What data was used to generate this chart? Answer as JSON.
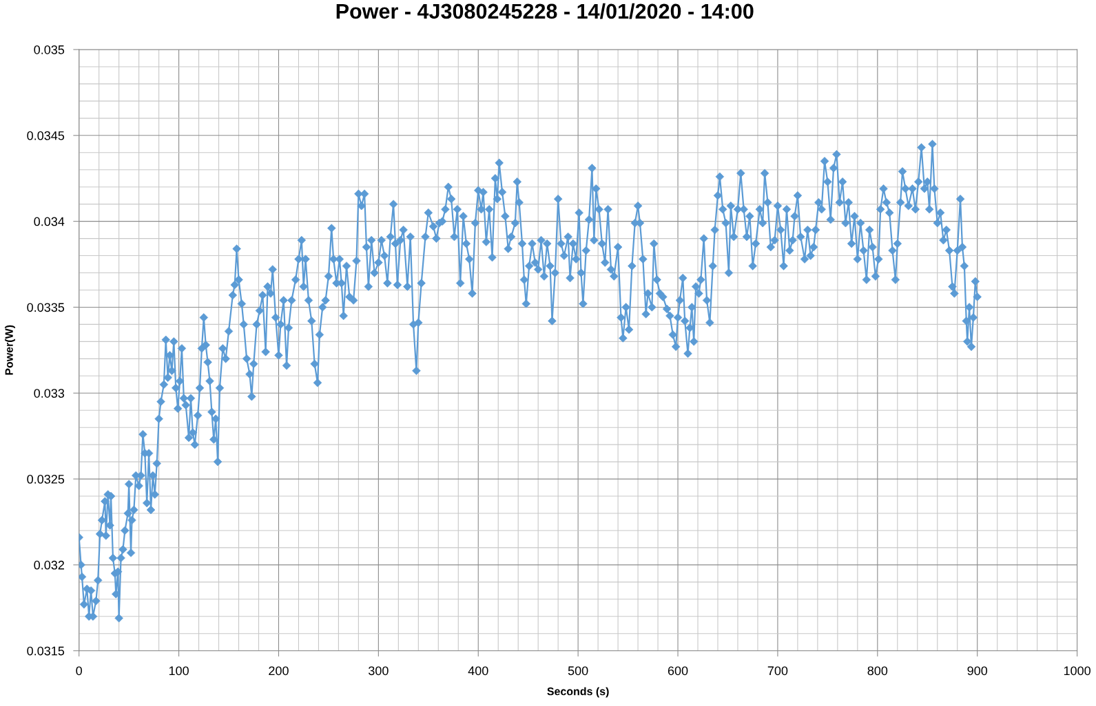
{
  "chart_data": {
    "type": "line",
    "title": "Power - 4J3080245228 - 14/01/2020 - 14:00",
    "xlabel": "Seconds (s)",
    "ylabel": "Power(W)",
    "x": [
      0,
      2,
      3,
      5,
      8,
      10,
      12,
      14,
      17,
      19,
      21,
      23,
      26,
      27,
      29,
      31,
      32,
      34,
      36,
      37,
      39,
      40,
      42,
      44,
      46,
      49,
      50,
      52,
      53,
      55,
      57,
      60,
      62,
      64,
      66,
      68,
      70,
      72,
      74,
      76,
      78,
      80,
      82,
      85,
      87,
      89,
      91,
      93,
      95,
      97,
      99,
      101,
      103,
      105,
      107,
      110,
      112,
      114,
      116,
      119,
      121,
      123,
      125,
      127,
      129,
      131,
      133,
      135,
      137,
      139,
      141,
      144,
      147,
      150,
      154,
      156,
      158,
      160,
      163,
      165,
      168,
      171,
      173,
      175,
      178,
      181,
      184,
      187,
      189,
      192,
      194,
      197,
      200,
      202,
      205,
      208,
      210,
      213,
      217,
      220,
      223,
      225,
      227,
      230,
      233,
      236,
      239,
      241,
      244,
      247,
      250,
      253,
      255,
      258,
      261,
      263,
      265,
      268,
      271,
      275,
      278,
      280,
      283,
      286,
      288,
      290,
      293,
      296,
      300,
      303,
      306,
      309,
      312,
      315,
      317,
      319,
      322,
      325,
      329,
      332,
      335,
      338,
      340,
      343,
      347,
      350,
      355,
      358,
      361,
      364,
      367,
      370,
      373,
      376,
      379,
      382,
      385,
      388,
      391,
      394,
      397,
      400,
      403,
      405,
      408,
      411,
      414,
      417,
      419,
      421,
      424,
      427,
      430,
      433,
      437,
      439,
      441,
      444,
      446,
      448,
      451,
      454,
      457,
      460,
      463,
      466,
      469,
      472,
      474,
      477,
      480,
      483,
      486,
      490,
      492,
      495,
      498,
      501,
      503,
      505,
      508,
      511,
      514,
      516,
      518,
      521,
      524,
      527,
      530,
      533,
      536,
      540,
      543,
      545,
      548,
      551,
      554,
      557,
      560,
      562,
      565,
      568,
      570,
      574,
      576,
      579,
      582,
      585,
      589,
      592,
      595,
      598,
      600,
      602,
      605,
      607,
      610,
      612,
      614,
      616,
      618,
      621,
      623,
      626,
      629,
      632,
      635,
      637,
      640,
      642,
      645,
      648,
      651,
      653,
      656,
      660,
      663,
      666,
      669,
      672,
      675,
      678,
      682,
      685,
      687,
      690,
      693,
      697,
      700,
      703,
      706,
      709,
      712,
      715,
      717,
      720,
      723,
      727,
      730,
      733,
      736,
      738,
      741,
      744,
      747,
      750,
      753,
      756,
      759,
      762,
      765,
      768,
      771,
      774,
      777,
      780,
      783,
      786,
      789,
      792,
      795,
      798,
      801,
      803,
      806,
      809,
      812,
      815,
      818,
      820,
      823,
      825,
      828,
      831,
      835,
      838,
      841,
      844,
      847,
      850,
      852,
      855,
      857,
      860,
      863,
      866,
      869,
      872,
      875,
      877,
      880,
      883,
      885,
      887,
      889,
      890,
      892,
      894,
      896,
      898,
      900
    ],
    "series": [
      {
        "color": "#5b9bd5",
        "values": [
          0.03216,
          0.032,
          0.03193,
          0.03177,
          0.03186,
          0.0317,
          0.03185,
          0.0317,
          0.03179,
          0.03191,
          0.03218,
          0.03226,
          0.03237,
          0.03217,
          0.03241,
          0.03223,
          0.0324,
          0.03204,
          0.03195,
          0.03183,
          0.03196,
          0.03169,
          0.03204,
          0.03209,
          0.0322,
          0.0323,
          0.03247,
          0.03207,
          0.03226,
          0.03232,
          0.03252,
          0.03246,
          0.03252,
          0.03276,
          0.03265,
          0.03236,
          0.03265,
          0.03232,
          0.03252,
          0.03241,
          0.03259,
          0.03285,
          0.03295,
          0.03305,
          0.03331,
          0.03309,
          0.03322,
          0.03313,
          0.0333,
          0.03303,
          0.03291,
          0.03307,
          0.03326,
          0.03297,
          0.03293,
          0.03274,
          0.03297,
          0.03277,
          0.0327,
          0.03287,
          0.03303,
          0.03326,
          0.03344,
          0.03328,
          0.03318,
          0.03307,
          0.03289,
          0.03273,
          0.03285,
          0.0326,
          0.03303,
          0.03326,
          0.0332,
          0.03336,
          0.03357,
          0.03363,
          0.03384,
          0.03366,
          0.03352,
          0.0334,
          0.0332,
          0.03311,
          0.03298,
          0.03317,
          0.0334,
          0.03348,
          0.03357,
          0.03324,
          0.03362,
          0.03358,
          0.03372,
          0.03344,
          0.03322,
          0.0334,
          0.03354,
          0.03316,
          0.03338,
          0.03354,
          0.03366,
          0.03378,
          0.03389,
          0.03362,
          0.03378,
          0.03354,
          0.03342,
          0.03317,
          0.03306,
          0.03334,
          0.0335,
          0.03354,
          0.03368,
          0.03396,
          0.03378,
          0.03364,
          0.03378,
          0.03364,
          0.03345,
          0.03374,
          0.03356,
          0.03354,
          0.03377,
          0.03416,
          0.03409,
          0.03416,
          0.03385,
          0.03362,
          0.03389,
          0.0337,
          0.03376,
          0.03389,
          0.0338,
          0.03364,
          0.03391,
          0.0341,
          0.03387,
          0.03363,
          0.03389,
          0.03395,
          0.03362,
          0.03391,
          0.0334,
          0.03313,
          0.03341,
          0.03364,
          0.03391,
          0.03405,
          0.03397,
          0.0339,
          0.03399,
          0.034,
          0.03407,
          0.0342,
          0.03413,
          0.03391,
          0.03407,
          0.03364,
          0.03403,
          0.03387,
          0.03378,
          0.03358,
          0.03399,
          0.03418,
          0.03407,
          0.03417,
          0.03388,
          0.03407,
          0.03379,
          0.03425,
          0.03413,
          0.03434,
          0.03417,
          0.03403,
          0.03384,
          0.03391,
          0.03399,
          0.03423,
          0.03411,
          0.03387,
          0.03366,
          0.03352,
          0.03374,
          0.03387,
          0.03376,
          0.03372,
          0.03389,
          0.03368,
          0.03387,
          0.03374,
          0.03342,
          0.0337,
          0.03413,
          0.03387,
          0.0338,
          0.03391,
          0.03367,
          0.03387,
          0.03378,
          0.03405,
          0.0337,
          0.03352,
          0.03383,
          0.03401,
          0.03431,
          0.03389,
          0.03419,
          0.03407,
          0.03387,
          0.03376,
          0.03407,
          0.03372,
          0.03368,
          0.03385,
          0.03344,
          0.03332,
          0.0335,
          0.03337,
          0.03374,
          0.03399,
          0.03409,
          0.03399,
          0.03378,
          0.03346,
          0.03358,
          0.0335,
          0.03387,
          0.03366,
          0.03358,
          0.03356,
          0.03349,
          0.03345,
          0.03334,
          0.03327,
          0.03344,
          0.03354,
          0.03367,
          0.03342,
          0.03323,
          0.03338,
          0.0335,
          0.0333,
          0.03362,
          0.03358,
          0.03366,
          0.0339,
          0.03354,
          0.03341,
          0.03374,
          0.03395,
          0.03415,
          0.03426,
          0.03407,
          0.03399,
          0.0337,
          0.03409,
          0.03391,
          0.03407,
          0.03428,
          0.03407,
          0.03391,
          0.03403,
          0.03374,
          0.03387,
          0.03407,
          0.03399,
          0.03428,
          0.03411,
          0.03385,
          0.03389,
          0.03409,
          0.03395,
          0.03374,
          0.03407,
          0.03383,
          0.03389,
          0.03403,
          0.03415,
          0.03391,
          0.03378,
          0.03395,
          0.0338,
          0.03385,
          0.03395,
          0.03411,
          0.03407,
          0.03435,
          0.03423,
          0.03401,
          0.03431,
          0.03439,
          0.03411,
          0.03423,
          0.03399,
          0.03411,
          0.03387,
          0.03403,
          0.03378,
          0.03399,
          0.03383,
          0.03366,
          0.03395,
          0.03385,
          0.03368,
          0.03378,
          0.03407,
          0.03419,
          0.03411,
          0.03405,
          0.03383,
          0.03366,
          0.03387,
          0.03411,
          0.03429,
          0.03419,
          0.03409,
          0.03419,
          0.03407,
          0.03423,
          0.03443,
          0.03419,
          0.03423,
          0.03407,
          0.03445,
          0.03419,
          0.03399,
          0.03405,
          0.03389,
          0.03395,
          0.03383,
          0.03362,
          0.03358,
          0.03383,
          0.03413,
          0.03385,
          0.03374,
          0.03342,
          0.0333,
          0.0335,
          0.03327,
          0.03344,
          0.03365,
          0.03356
        ]
      }
    ],
    "xlim": [
      0,
      1000
    ],
    "ylim": [
      0.0315,
      0.035
    ],
    "xticks": [
      0,
      {
        "value": 20,
        "label": null
      },
      {
        "value": 40,
        "label": null
      },
      {
        "value": 60,
        "label": null
      },
      {
        "value": 80,
        "label": null
      },
      100,
      {
        "value": 120,
        "label": null
      },
      {
        "value": 140,
        "label": null
      },
      {
        "value": 160,
        "label": null
      },
      {
        "value": 180,
        "label": null
      },
      200,
      {
        "value": 220,
        "label": null
      },
      {
        "value": 240,
        "label": null
      },
      {
        "value": 260,
        "label": null
      },
      {
        "value": 280,
        "label": null
      },
      300,
      {
        "value": 320,
        "label": null
      },
      {
        "value": 340,
        "label": null
      },
      {
        "value": 360,
        "label": null
      },
      {
        "value": 380,
        "label": null
      },
      400,
      {
        "value": 420,
        "label": null
      },
      {
        "value": 440,
        "label": null
      },
      {
        "value": 460,
        "label": null
      },
      {
        "value": 480,
        "label": null
      },
      500,
      {
        "value": 520,
        "label": null
      },
      {
        "value": 540,
        "label": null
      },
      {
        "value": 560,
        "label": null
      },
      {
        "value": 580,
        "label": null
      },
      600,
      {
        "value": 620,
        "label": null
      },
      {
        "value": 640,
        "label": null
      },
      {
        "value": 660,
        "label": null
      },
      {
        "value": 680,
        "label": null
      },
      700,
      {
        "value": 720,
        "label": null
      },
      {
        "value": 740,
        "label": null
      },
      {
        "value": 760,
        "label": null
      },
      {
        "value": 780,
        "label": null
      },
      800,
      {
        "value": 820,
        "label": null
      },
      {
        "value": 840,
        "label": null
      },
      {
        "value": 860,
        "label": null
      },
      {
        "value": 880,
        "label": null
      },
      900,
      {
        "value": 920,
        "label": null
      },
      {
        "value": 940,
        "label": null
      },
      {
        "value": 960,
        "label": null
      },
      {
        "value": 980,
        "label": null
      },
      1000
    ],
    "yticks": [
      0.0315,
      {
        "value": 0.0316,
        "label": null
      },
      {
        "value": 0.0317,
        "label": null
      },
      {
        "value": 0.0318,
        "label": null
      },
      {
        "value": 0.0319,
        "label": null
      },
      0.032,
      {
        "value": 0.0321,
        "label": null
      },
      {
        "value": 0.0322,
        "label": null
      },
      {
        "value": 0.0323,
        "label": null
      },
      {
        "value": 0.0324,
        "label": null
      },
      0.0325,
      {
        "value": 0.0326,
        "label": null
      },
      {
        "value": 0.0327,
        "label": null
      },
      {
        "value": 0.0328,
        "label": null
      },
      {
        "value": 0.0329,
        "label": null
      },
      0.033,
      {
        "value": 0.0331,
        "label": null
      },
      {
        "value": 0.0332,
        "label": null
      },
      {
        "value": 0.0333,
        "label": null
      },
      {
        "value": 0.0334,
        "label": null
      },
      0.0335,
      {
        "value": 0.0336,
        "label": null
      },
      {
        "value": 0.0337,
        "label": null
      },
      {
        "value": 0.0338,
        "label": null
      },
      {
        "value": 0.0339,
        "label": null
      },
      0.034,
      {
        "value": 0.0341,
        "label": null
      },
      {
        "value": 0.0342,
        "label": null
      },
      {
        "value": 0.0343,
        "label": null
      },
      {
        "value": 0.0344,
        "label": null
      },
      0.0345,
      {
        "value": 0.0346,
        "label": null
      },
      {
        "value": 0.0347,
        "label": null
      },
      {
        "value": 0.0348,
        "label": null
      },
      {
        "value": 0.0349,
        "label": null
      },
      0.035
    ],
    "grid": true,
    "marker": "diamond",
    "line_style": "solid"
  }
}
